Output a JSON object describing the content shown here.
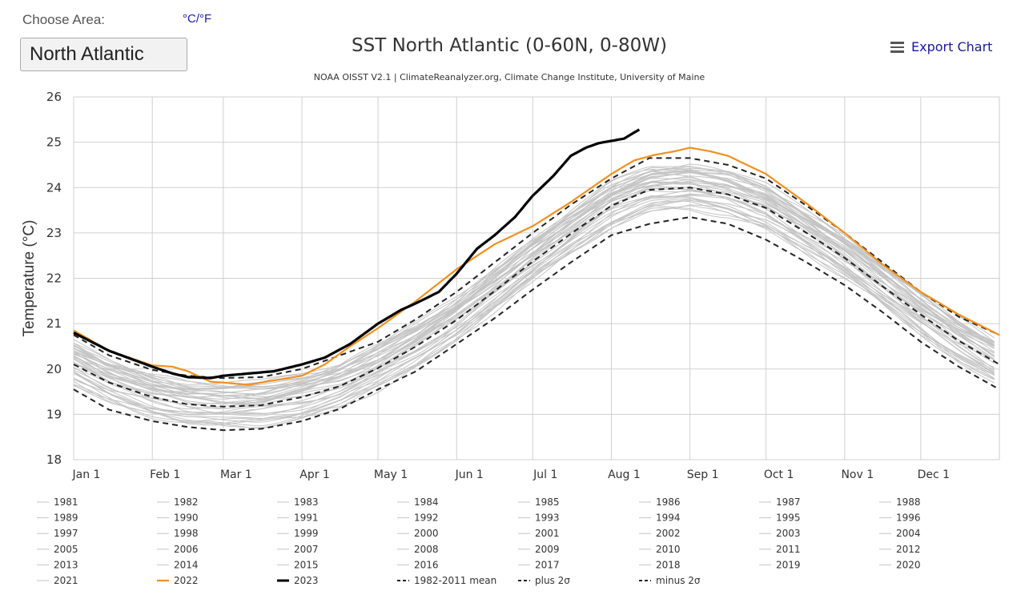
{
  "controls": {
    "choose_area_label": "Choose Area:",
    "unit_toggle": "°C/°F",
    "area_value": "North Atlantic",
    "export_label": "Export Chart"
  },
  "chart_data": {
    "type": "line",
    "title": "SST North Atlantic (0-60N, 0-80W)",
    "subtitle": "NOAA OISST V2.1 | ClimateReanalyzer.org, Climate Change Institute, University of Maine",
    "xlabel": "",
    "ylabel": "Temperature (°C)",
    "ylim": [
      18,
      26
    ],
    "xlim": [
      1,
      366
    ],
    "grid": true,
    "y_ticks": [
      18,
      19,
      20,
      21,
      22,
      23,
      24,
      25,
      26
    ],
    "x_ticks": [
      {
        "label": "Jan 1",
        "day": 1
      },
      {
        "label": "Feb 1",
        "day": 32
      },
      {
        "label": "Mar 1",
        "day": 60
      },
      {
        "label": "Apr 1",
        "day": 91
      },
      {
        "label": "May 1",
        "day": 121
      },
      {
        "label": "Jun 1",
        "day": 152
      },
      {
        "label": "Jul 1",
        "day": 182
      },
      {
        "label": "Aug 1",
        "day": 213
      },
      {
        "label": "Sep 1",
        "day": 244
      },
      {
        "label": "Oct 1",
        "day": 274
      },
      {
        "label": "Nov 1",
        "day": 305
      },
      {
        "label": "Dec 1",
        "day": 335
      }
    ],
    "background_years": {
      "years": [
        "1981",
        "1982",
        "1983",
        "1984",
        "1985",
        "1986",
        "1987",
        "1988",
        "1989",
        "1990",
        "1991",
        "1992",
        "1993",
        "1994",
        "1995",
        "1996",
        "1997",
        "1998",
        "1999",
        "2000",
        "2001",
        "2002",
        "2003",
        "2004",
        "2005",
        "2006",
        "2007",
        "2008",
        "2009",
        "2010",
        "2011",
        "2012",
        "2013",
        "2014",
        "2015",
        "2016",
        "2017",
        "2018",
        "2019",
        "2020",
        "2021"
      ],
      "color": "#c4c4c4",
      "offsets": [
        -0.45,
        -0.38,
        -0.2,
        -0.35,
        -0.42,
        -0.3,
        -0.05,
        -0.22,
        -0.28,
        -0.18,
        -0.12,
        -0.4,
        -0.33,
        -0.15,
        0.02,
        -0.1,
        0.05,
        0.22,
        0.08,
        0.0,
        0.12,
        0.1,
        0.2,
        0.14,
        0.3,
        0.25,
        0.18,
        0.22,
        0.28,
        0.42,
        0.2,
        0.4,
        0.35,
        0.32,
        0.38,
        0.45,
        0.4,
        0.3,
        0.42,
        0.5,
        0.46
      ],
      "wiggle_amplitude": 0.06
    },
    "series": [
      {
        "name": "1982-2011 mean",
        "color": "#222222",
        "dash": "dashed",
        "x": [
          1,
          15,
          32,
          46,
          60,
          75,
          91,
          106,
          121,
          136,
          152,
          167,
          182,
          197,
          213,
          228,
          244,
          259,
          274,
          290,
          305,
          320,
          335,
          350,
          366
        ],
        "y": [
          20.1,
          19.7,
          19.38,
          19.22,
          19.17,
          19.2,
          19.38,
          19.62,
          20.02,
          20.5,
          21.08,
          21.72,
          22.37,
          22.98,
          23.6,
          23.95,
          24.0,
          23.85,
          23.55,
          23.0,
          22.45,
          21.82,
          21.2,
          20.62,
          20.1
        ]
      },
      {
        "name": "plus 2σ",
        "color": "#222222",
        "dash": "dashed",
        "x": [
          1,
          15,
          32,
          46,
          60,
          75,
          91,
          106,
          121,
          136,
          152,
          167,
          182,
          197,
          213,
          228,
          244,
          259,
          274,
          290,
          305,
          320,
          335,
          350,
          366
        ],
        "y": [
          20.75,
          20.3,
          19.98,
          19.85,
          19.8,
          19.82,
          20.0,
          20.3,
          20.6,
          21.1,
          21.7,
          22.35,
          23.0,
          23.62,
          24.2,
          24.65,
          24.65,
          24.5,
          24.2,
          23.6,
          23.0,
          22.35,
          21.7,
          21.15,
          20.75
        ]
      },
      {
        "name": "minus 2σ",
        "color": "#222222",
        "dash": "dashed",
        "x": [
          1,
          15,
          32,
          46,
          60,
          75,
          91,
          106,
          121,
          136,
          152,
          167,
          182,
          197,
          213,
          228,
          244,
          259,
          274,
          290,
          305,
          320,
          335,
          350,
          366
        ],
        "y": [
          19.55,
          19.1,
          18.85,
          18.72,
          18.65,
          18.68,
          18.85,
          19.12,
          19.55,
          19.95,
          20.55,
          21.12,
          21.75,
          22.35,
          22.95,
          23.2,
          23.35,
          23.2,
          22.85,
          22.35,
          21.85,
          21.25,
          20.6,
          20.05,
          19.55
        ]
      },
      {
        "name": "2022",
        "color": "#f0901e",
        "dash": "solid",
        "x": [
          1,
          15,
          32,
          40,
          46,
          55,
          60,
          70,
          80,
          91,
          100,
          110,
          121,
          136,
          152,
          167,
          182,
          197,
          213,
          222,
          230,
          238,
          244,
          252,
          259,
          274,
          290,
          305,
          320,
          335,
          350,
          366
        ],
        "y": [
          20.85,
          20.4,
          20.08,
          20.05,
          19.95,
          19.72,
          19.7,
          19.65,
          19.75,
          19.85,
          20.1,
          20.5,
          20.9,
          21.5,
          22.2,
          22.75,
          23.15,
          23.68,
          24.3,
          24.6,
          24.72,
          24.8,
          24.88,
          24.8,
          24.7,
          24.3,
          23.65,
          23.0,
          22.3,
          21.7,
          21.2,
          20.75
        ]
      },
      {
        "name": "2023",
        "color": "#000000",
        "dash": "solid",
        "x": [
          1,
          15,
          32,
          40,
          46,
          55,
          60,
          70,
          80,
          91,
          100,
          110,
          121,
          130,
          136,
          145,
          152,
          160,
          167,
          175,
          182,
          190,
          197,
          203,
          208,
          213,
          218,
          224
        ],
        "y": [
          20.8,
          20.4,
          20.05,
          19.9,
          19.82,
          19.8,
          19.85,
          19.9,
          19.95,
          20.1,
          20.25,
          20.55,
          21.0,
          21.3,
          21.45,
          21.7,
          22.1,
          22.65,
          22.95,
          23.35,
          23.82,
          24.25,
          24.7,
          24.88,
          24.98,
          25.03,
          25.08,
          25.28
        ]
      }
    ],
    "legend": {
      "placement": "bottom",
      "entries": [
        "1981",
        "1982",
        "1983",
        "1984",
        "1985",
        "1986",
        "1987",
        "1988",
        "1989",
        "1990",
        "1991",
        "1992",
        "1993",
        "1994",
        "1995",
        "1996",
        "1997",
        "1998",
        "1999",
        "2000",
        "2001",
        "2002",
        "2003",
        "2004",
        "2005",
        "2006",
        "2007",
        "2008",
        "2009",
        "2010",
        "2011",
        "2012",
        "2013",
        "2014",
        "2015",
        "2016",
        "2017",
        "2018",
        "2019",
        "2020",
        "2021",
        "2022",
        "2023",
        "1982-2011 mean",
        "plus 2σ",
        "minus 2σ"
      ]
    }
  }
}
